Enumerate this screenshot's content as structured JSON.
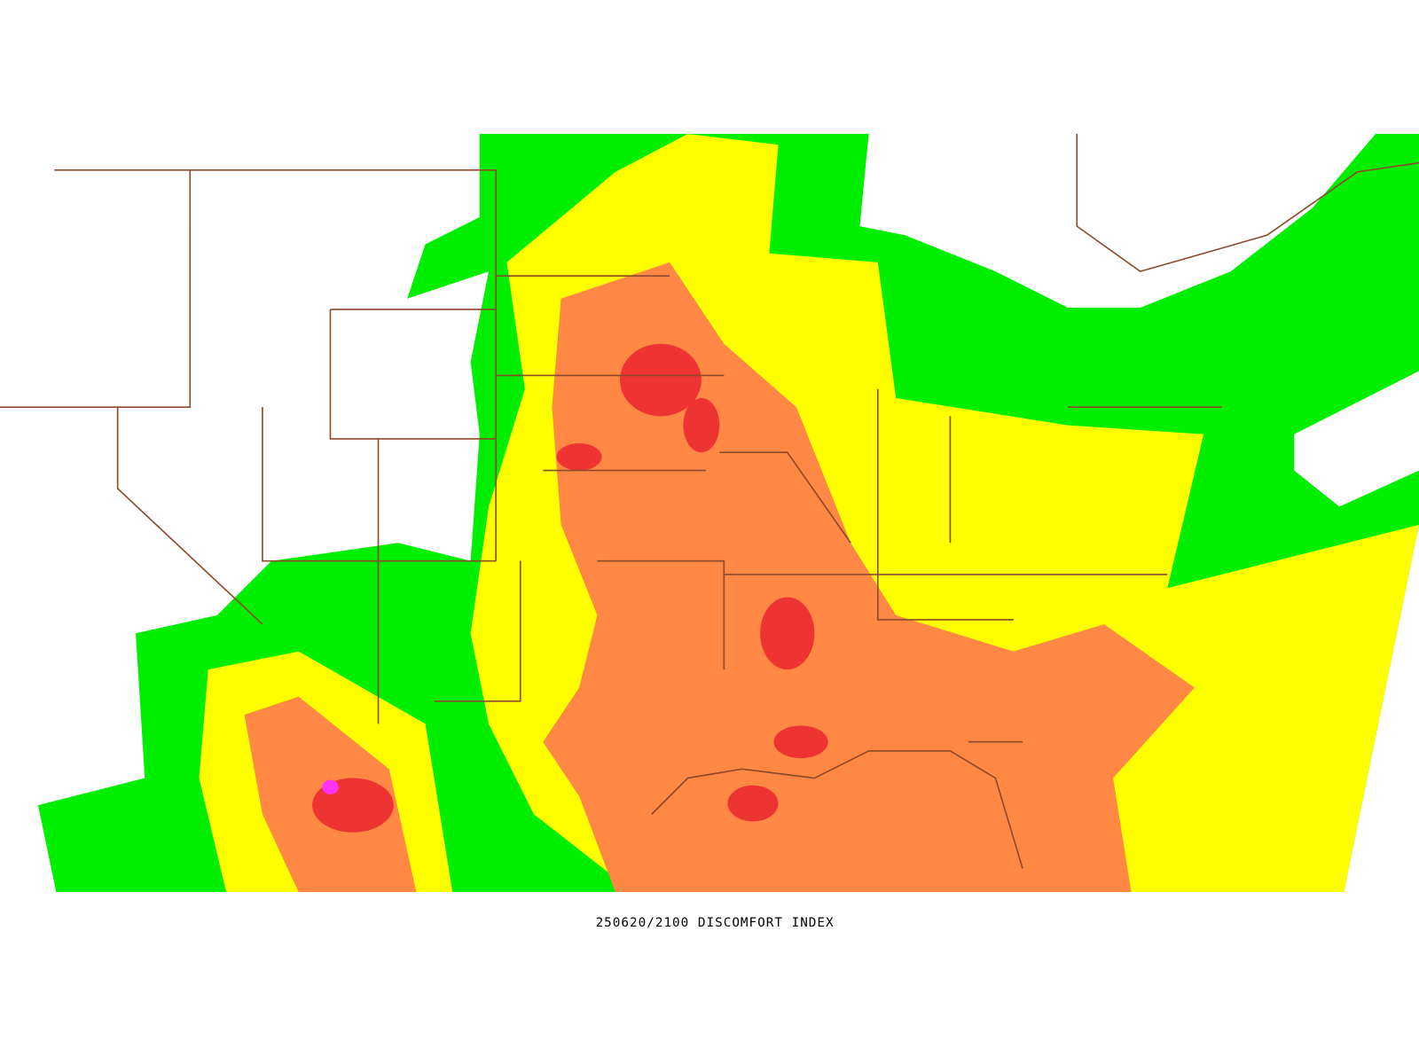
{
  "caption": "250620/2100 DISCOMFORT INDEX"
}
